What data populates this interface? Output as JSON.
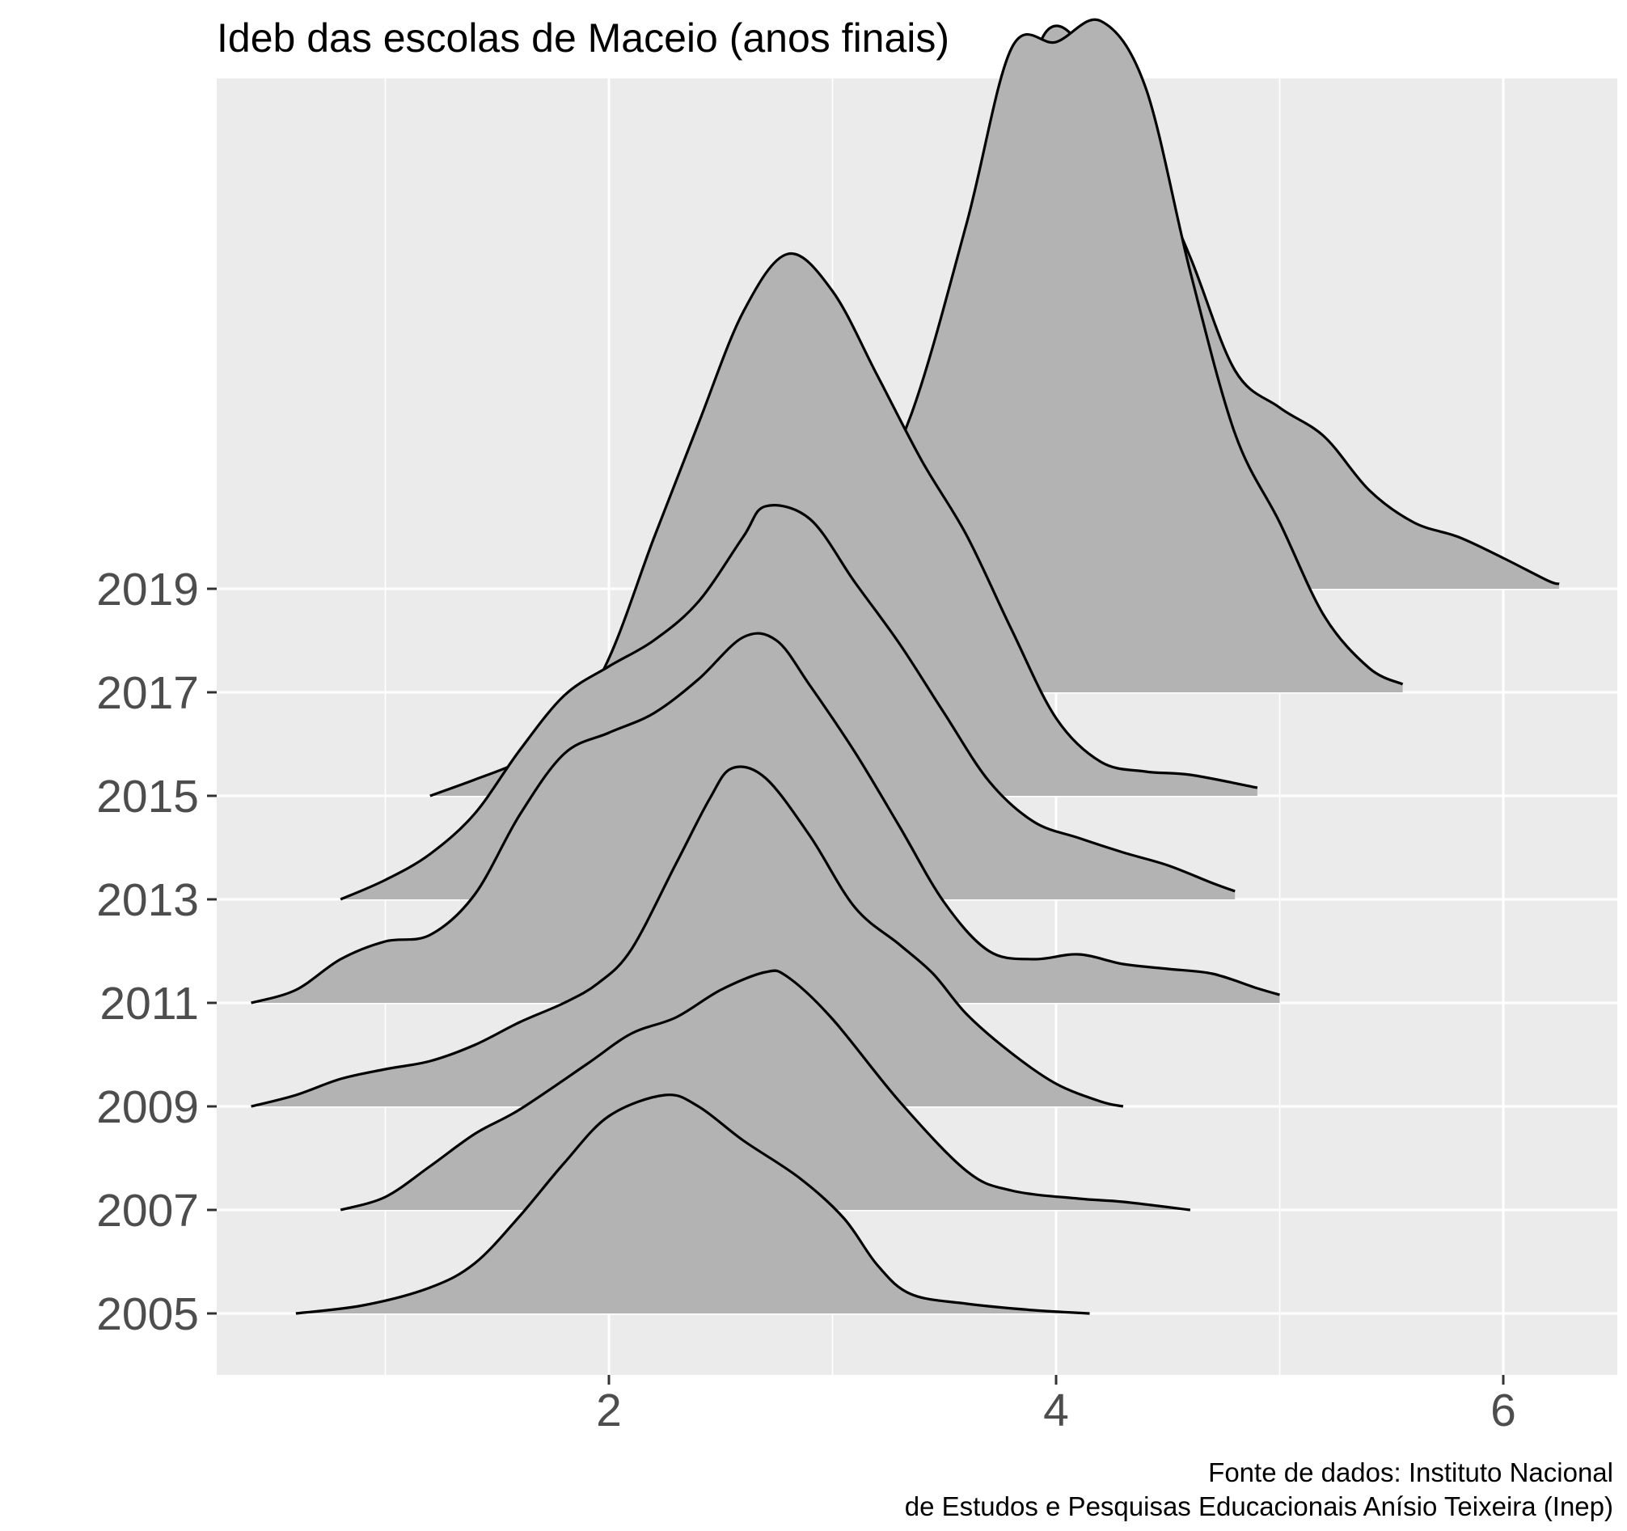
{
  "chart_data": {
    "type": "ridgeline",
    "title": "Ideb das escolas de Maceio (anos finais)",
    "caption": [
      "Fonte de dados:  Instituto Nacional",
      "de Estudos e Pesquisas Educacionais Anísio Teixeira (Inep)"
    ],
    "xlabel": "",
    "ylabel": "",
    "x_ticks": [
      2,
      4,
      6
    ],
    "xlim": [
      0.2,
      6.5
    ],
    "categories": [
      "2005",
      "2007",
      "2009",
      "2011",
      "2013",
      "2015",
      "2017",
      "2019"
    ],
    "grid": true,
    "colors": {
      "panel": "#ebebeb",
      "grid": "#ffffff",
      "fill": "#b3b3b3",
      "line": "#000000"
    },
    "series": [
      {
        "name": "2005",
        "points": [
          [
            0.6,
            0.0
          ],
          [
            0.9,
            0.05
          ],
          [
            1.2,
            0.16
          ],
          [
            1.4,
            0.31
          ],
          [
            1.6,
            0.6
          ],
          [
            1.8,
            0.93
          ],
          [
            2.0,
            1.22
          ],
          [
            2.25,
            1.35
          ],
          [
            2.4,
            1.28
          ],
          [
            2.6,
            1.07
          ],
          [
            2.85,
            0.84
          ],
          [
            3.05,
            0.59
          ],
          [
            3.2,
            0.3
          ],
          [
            3.35,
            0.12
          ],
          [
            3.6,
            0.06
          ],
          [
            3.9,
            0.02
          ],
          [
            4.15,
            0.0
          ]
        ]
      },
      {
        "name": "2007",
        "points": [
          [
            0.8,
            0.0
          ],
          [
            1.0,
            0.08
          ],
          [
            1.2,
            0.27
          ],
          [
            1.4,
            0.47
          ],
          [
            1.6,
            0.62
          ],
          [
            1.9,
            0.9
          ],
          [
            2.1,
            1.09
          ],
          [
            2.3,
            1.19
          ],
          [
            2.5,
            1.36
          ],
          [
            2.7,
            1.47
          ],
          [
            2.8,
            1.44
          ],
          [
            3.0,
            1.18
          ],
          [
            3.3,
            0.67
          ],
          [
            3.6,
            0.24
          ],
          [
            3.8,
            0.12
          ],
          [
            4.1,
            0.07
          ],
          [
            4.3,
            0.05
          ],
          [
            4.6,
            0.0
          ]
        ]
      },
      {
        "name": "2009",
        "points": [
          [
            0.4,
            0.0
          ],
          [
            0.6,
            0.07
          ],
          [
            0.8,
            0.17
          ],
          [
            1.0,
            0.23
          ],
          [
            1.2,
            0.28
          ],
          [
            1.4,
            0.38
          ],
          [
            1.6,
            0.52
          ],
          [
            1.8,
            0.64
          ],
          [
            1.95,
            0.76
          ],
          [
            2.1,
            0.97
          ],
          [
            2.3,
            1.5
          ],
          [
            2.45,
            1.9
          ],
          [
            2.55,
            2.09
          ],
          [
            2.7,
            2.03
          ],
          [
            2.9,
            1.67
          ],
          [
            3.1,
            1.23
          ],
          [
            3.3,
            1.0
          ],
          [
            3.45,
            0.82
          ],
          [
            3.6,
            0.57
          ],
          [
            3.8,
            0.33
          ],
          [
            4.0,
            0.14
          ],
          [
            4.2,
            0.03
          ],
          [
            4.3,
            0.0
          ]
        ]
      },
      {
        "name": "2011",
        "points": [
          [
            0.4,
            0.0
          ],
          [
            0.6,
            0.08
          ],
          [
            0.8,
            0.27
          ],
          [
            1.0,
            0.38
          ],
          [
            1.2,
            0.42
          ],
          [
            1.4,
            0.67
          ],
          [
            1.6,
            1.16
          ],
          [
            1.8,
            1.54
          ],
          [
            2.0,
            1.67
          ],
          [
            2.2,
            1.79
          ],
          [
            2.4,
            2.0
          ],
          [
            2.6,
            2.26
          ],
          [
            2.75,
            2.24
          ],
          [
            2.9,
            1.96
          ],
          [
            3.1,
            1.55
          ],
          [
            3.3,
            1.09
          ],
          [
            3.5,
            0.62
          ],
          [
            3.7,
            0.32
          ],
          [
            3.9,
            0.27
          ],
          [
            4.1,
            0.3
          ],
          [
            4.3,
            0.24
          ],
          [
            4.5,
            0.21
          ],
          [
            4.7,
            0.18
          ],
          [
            4.9,
            0.09
          ],
          [
            5.0,
            0.05
          ]
        ]
      },
      {
        "name": "2013",
        "points": [
          [
            0.8,
            0.0
          ],
          [
            1.0,
            0.12
          ],
          [
            1.2,
            0.28
          ],
          [
            1.4,
            0.53
          ],
          [
            1.6,
            0.92
          ],
          [
            1.8,
            1.26
          ],
          [
            2.0,
            1.44
          ],
          [
            2.2,
            1.6
          ],
          [
            2.4,
            1.84
          ],
          [
            2.6,
            2.24
          ],
          [
            2.7,
            2.43
          ],
          [
            2.9,
            2.35
          ],
          [
            3.1,
            1.96
          ],
          [
            3.3,
            1.58
          ],
          [
            3.5,
            1.15
          ],
          [
            3.7,
            0.73
          ],
          [
            3.9,
            0.48
          ],
          [
            4.1,
            0.38
          ],
          [
            4.3,
            0.29
          ],
          [
            4.5,
            0.21
          ],
          [
            4.7,
            0.1
          ],
          [
            4.8,
            0.05
          ]
        ]
      },
      {
        "name": "2015",
        "points": [
          [
            1.2,
            0.0
          ],
          [
            1.4,
            0.1
          ],
          [
            1.6,
            0.21
          ],
          [
            1.8,
            0.38
          ],
          [
            2.0,
            0.85
          ],
          [
            2.2,
            1.59
          ],
          [
            2.4,
            2.3
          ],
          [
            2.6,
            2.99
          ],
          [
            2.8,
            3.35
          ],
          [
            3.0,
            3.12
          ],
          [
            3.2,
            2.6
          ],
          [
            3.4,
            2.07
          ],
          [
            3.6,
            1.61
          ],
          [
            3.8,
            1.03
          ],
          [
            4.0,
            0.48
          ],
          [
            4.2,
            0.21
          ],
          [
            4.4,
            0.15
          ],
          [
            4.6,
            0.13
          ],
          [
            4.9,
            0.05
          ]
        ]
      },
      {
        "name": "2017",
        "points": [
          [
            2.5,
            0.0
          ],
          [
            2.7,
            0.23
          ],
          [
            2.9,
            0.63
          ],
          [
            3.1,
            1.02
          ],
          [
            3.35,
            1.71
          ],
          [
            3.6,
            2.9
          ],
          [
            3.8,
            3.98
          ],
          [
            4.0,
            4.02
          ],
          [
            4.2,
            4.15
          ],
          [
            4.4,
            3.74
          ],
          [
            4.6,
            2.6
          ],
          [
            4.8,
            1.6
          ],
          [
            5.0,
            1.05
          ],
          [
            5.2,
            0.47
          ],
          [
            5.4,
            0.15
          ],
          [
            5.55,
            0.05
          ]
        ]
      },
      {
        "name": "2019",
        "points": [
          [
            3.5,
            0.0
          ],
          [
            3.6,
            0.9
          ],
          [
            3.8,
            2.55
          ],
          [
            3.9,
            3.26
          ],
          [
            4.0,
            3.48
          ],
          [
            4.15,
            3.28
          ],
          [
            4.4,
            2.67
          ],
          [
            4.6,
            2.05
          ],
          [
            4.8,
            1.35
          ],
          [
            5.0,
            1.12
          ],
          [
            5.2,
            0.94
          ],
          [
            5.4,
            0.61
          ],
          [
            5.6,
            0.41
          ],
          [
            5.8,
            0.32
          ],
          [
            6.0,
            0.19
          ],
          [
            6.2,
            0.05
          ],
          [
            6.25,
            0.03
          ]
        ]
      }
    ]
  }
}
